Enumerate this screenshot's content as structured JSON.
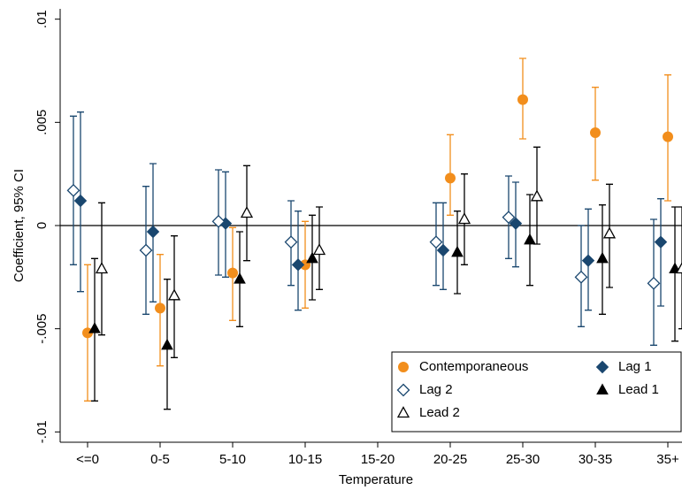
{
  "chart_data": {
    "type": "coefplot",
    "x_label": "Temperature",
    "y_label": "Coefficient, 95% CI",
    "categories": [
      "<=0",
      "0-5",
      "5-10",
      "10-15",
      "15-20",
      "20-25",
      "25-30",
      "30-35",
      "35+"
    ],
    "ylim": [
      -0.0105,
      0.0105
    ],
    "yticks": [
      {
        "value": -0.01,
        "label": "-.01"
      },
      {
        "value": -0.005,
        "label": "-.005"
      },
      0,
      {
        "value": 0.005,
        "label": ".005"
      },
      {
        "value": 0.01,
        "label": ".01"
      }
    ],
    "zero_line": true,
    "grid": false,
    "legend_position": "bottom-right",
    "series": [
      {
        "name": "Contemporaneous",
        "color": "#f28e1c",
        "marker": "circle",
        "values": [
          -0.0052,
          -0.004,
          -0.0023,
          -0.0019,
          null,
          0.0023,
          0.0061,
          0.0045,
          0.0043
        ],
        "lower": [
          -0.0085,
          -0.0068,
          -0.0046,
          -0.004,
          null,
          0.0005,
          0.0042,
          0.0022,
          0.0012
        ],
        "upper": [
          -0.0019,
          -0.0014,
          -0.0001,
          0.0002,
          null,
          0.0044,
          0.0081,
          0.0067,
          0.0073
        ]
      },
      {
        "name": "Lag 1",
        "color": "#1a476f",
        "marker": "diamond",
        "values": [
          0.0012,
          -0.0003,
          0.0001,
          -0.0019,
          null,
          -0.0012,
          0.0001,
          -0.0017,
          -0.0008
        ],
        "lower": [
          -0.0032,
          -0.0037,
          -0.0025,
          -0.0041,
          null,
          -0.0031,
          -0.002,
          -0.0041,
          -0.0039
        ],
        "upper": [
          0.0055,
          0.003,
          0.0026,
          0.0007,
          null,
          0.0011,
          0.0021,
          0.0008,
          0.0013
        ]
      },
      {
        "name": "Lag 2",
        "color": "#1a476f",
        "marker": "diamond-open",
        "values": [
          0.0017,
          -0.0012,
          0.0002,
          -0.0008,
          null,
          -0.0008,
          0.0004,
          -0.0025,
          -0.0028
        ],
        "lower": [
          -0.0019,
          -0.0043,
          -0.0024,
          -0.0029,
          null,
          -0.0029,
          -0.0016,
          -0.0049,
          -0.0058
        ],
        "upper": [
          0.0053,
          0.0019,
          0.0027,
          0.0012,
          null,
          0.0011,
          0.0024,
          0.0,
          0.0003
        ]
      },
      {
        "name": "Lead 1",
        "color": "#000000",
        "marker": "triangle",
        "values": [
          -0.005,
          -0.0058,
          -0.0026,
          -0.0016,
          null,
          -0.0013,
          -0.0007,
          -0.0016,
          -0.0021
        ],
        "lower": [
          -0.0085,
          -0.0089,
          -0.0049,
          -0.0036,
          null,
          -0.0033,
          -0.0029,
          -0.0043,
          -0.0056
        ],
        "upper": [
          -0.0016,
          -0.0026,
          -0.0003,
          0.0005,
          null,
          0.0007,
          0.0015,
          0.001,
          0.0009
        ]
      },
      {
        "name": "Lead 2",
        "color": "#000000",
        "marker": "triangle-open",
        "values": [
          -0.0021,
          -0.0034,
          0.0006,
          -0.0012,
          null,
          0.0003,
          0.0014,
          -0.0004,
          -0.0021
        ],
        "lower": [
          -0.0053,
          -0.0064,
          -0.0017,
          -0.0031,
          null,
          -0.0019,
          -0.0009,
          -0.003,
          -0.005
        ],
        "upper": [
          0.0011,
          -0.0005,
          0.0029,
          0.0009,
          null,
          0.0025,
          0.0038,
          0.002,
          0.0009
        ]
      }
    ]
  }
}
